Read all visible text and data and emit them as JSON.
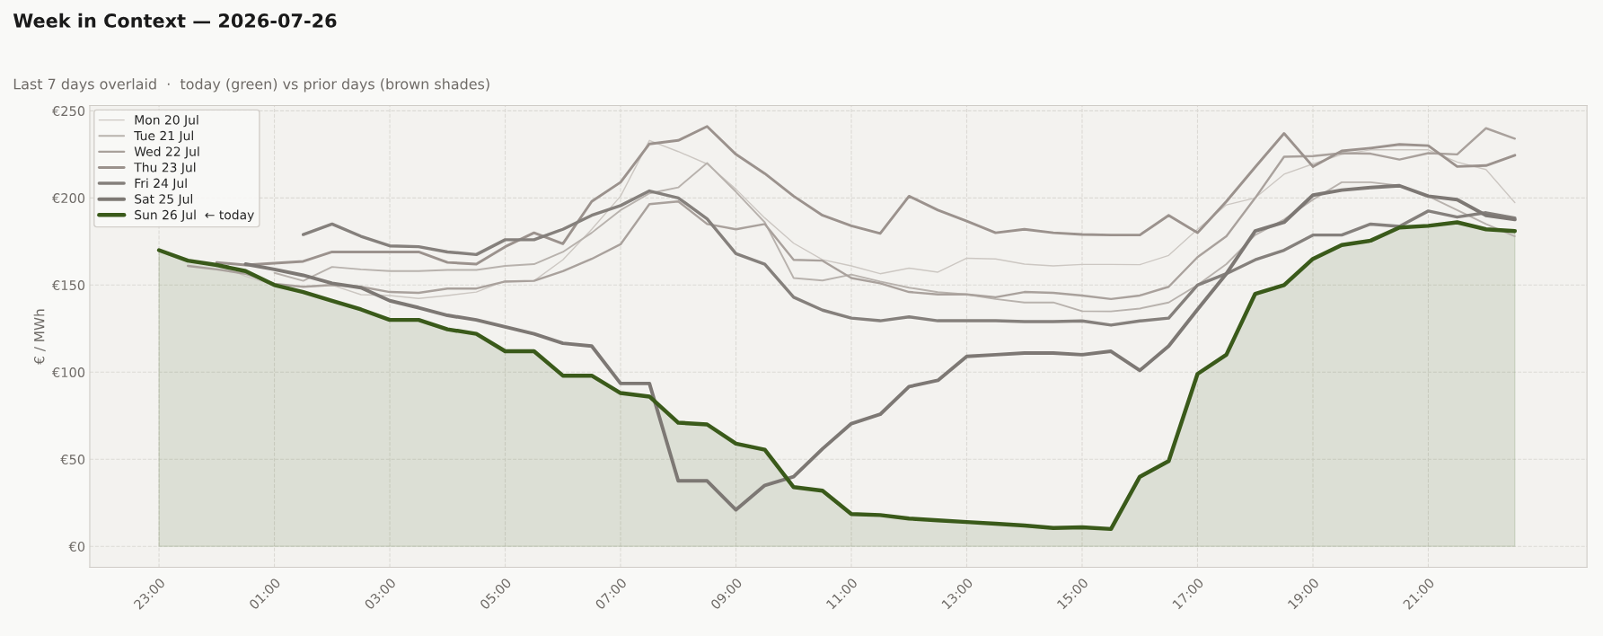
{
  "chart_data": {
    "type": "line",
    "title": "Week in Context — 2026-07-26",
    "subtitle": "Last 7 days overlaid  ·  today (green) vs prior days (brown shades)",
    "ylabel": "€ / MWh",
    "x": [
      "2026-07-25T23:00",
      "2026-07-25T23:30",
      "2026-07-26T00:00",
      "2026-07-26T00:30",
      "2026-07-26T01:00",
      "2026-07-26T01:30",
      "2026-07-26T02:00",
      "2026-07-26T02:30",
      "2026-07-26T03:00",
      "2026-07-26T03:30",
      "2026-07-26T04:00",
      "2026-07-26T04:30",
      "2026-07-26T05:00",
      "2026-07-26T05:30",
      "2026-07-26T06:00",
      "2026-07-26T06:30",
      "2026-07-26T07:00",
      "2026-07-26T07:30",
      "2026-07-26T08:00",
      "2026-07-26T08:30",
      "2026-07-26T09:00",
      "2026-07-26T09:30",
      "2026-07-26T10:00",
      "2026-07-26T10:30",
      "2026-07-26T11:00",
      "2026-07-26T11:30",
      "2026-07-26T12:00",
      "2026-07-26T12:30",
      "2026-07-26T13:00",
      "2026-07-26T13:30",
      "2026-07-26T14:00",
      "2026-07-26T14:30",
      "2026-07-26T15:00",
      "2026-07-26T15:30",
      "2026-07-26T16:00",
      "2026-07-26T16:30",
      "2026-07-26T17:00",
      "2026-07-26T17:30",
      "2026-07-26T18:00",
      "2026-07-26T18:30",
      "2026-07-26T19:00",
      "2026-07-26T19:30",
      "2026-07-26T20:00",
      "2026-07-26T20:30",
      "2026-07-26T21:00",
      "2026-07-26T21:30",
      "2026-07-26T22:00",
      "2026-07-26T22:30"
    ],
    "xlim": [
      "2026-07-25T21:48",
      "2026-07-26T23:45"
    ],
    "xticks": [
      {
        "value": "2026-07-25T23:00",
        "label": "23:00"
      },
      {
        "value": "2026-07-26T01:00",
        "label": "01:00"
      },
      {
        "value": "2026-07-26T03:00",
        "label": "03:00"
      },
      {
        "value": "2026-07-26T05:00",
        "label": "05:00"
      },
      {
        "value": "2026-07-26T07:00",
        "label": "07:00"
      },
      {
        "value": "2026-07-26T09:00",
        "label": "09:00"
      },
      {
        "value": "2026-07-26T11:00",
        "label": "11:00"
      },
      {
        "value": "2026-07-26T13:00",
        "label": "13:00"
      },
      {
        "value": "2026-07-26T15:00",
        "label": "15:00"
      },
      {
        "value": "2026-07-26T17:00",
        "label": "17:00"
      },
      {
        "value": "2026-07-26T19:00",
        "label": "19:00"
      },
      {
        "value": "2026-07-26T21:00",
        "label": "21:00"
      }
    ],
    "ylim": [
      -12,
      253
    ],
    "yticks": [
      {
        "value": 0,
        "label": "€0"
      },
      {
        "value": 50,
        "label": "€50"
      },
      {
        "value": 100,
        "label": "€100"
      },
      {
        "value": 150,
        "label": "€150"
      },
      {
        "value": 200,
        "label": "€200"
      },
      {
        "value": 250,
        "label": "€250"
      }
    ],
    "grid": true,
    "legend": "top left",
    "line_style": "solid",
    "series": [
      {
        "name": "Mon 20 Jul",
        "color": "#ccc7c2",
        "values": [
          null,
          null,
          162,
          155,
          150,
          149,
          150,
          144.5,
          144,
          142.3,
          144,
          146,
          152.4,
          152.4,
          164.5,
          182,
          201,
          233,
          226.6,
          219.5,
          205,
          188.5,
          174,
          164.5,
          161,
          156.5,
          159.7,
          157.4,
          165.4,
          165,
          162,
          161,
          161.8,
          161.8,
          161.7,
          167,
          182,
          196,
          200,
          213.6,
          219.5,
          225,
          227.6,
          227.6,
          227.6,
          220.6,
          216.3,
          197.3
        ]
      },
      {
        "name": "Tue 21 Jul",
        "color": "#b8b2ad",
        "values": [
          null,
          null,
          null,
          null,
          157,
          152.4,
          160.4,
          159,
          158,
          158,
          158.7,
          158.7,
          161,
          162,
          169,
          180,
          193,
          202.6,
          206,
          220,
          203.5,
          186,
          154,
          152.6,
          156,
          152,
          148.5,
          145.9,
          144.6,
          142,
          140,
          140,
          135,
          134.9,
          136.5,
          140,
          150,
          162,
          178.7,
          187.6,
          199,
          209,
          209,
          207,
          201,
          193,
          185,
          178
        ]
      },
      {
        "name": "Wed 22 Jul",
        "color": "#a9a19c",
        "values": [
          null,
          161,
          159,
          156.5,
          150.7,
          149,
          150,
          149,
          146,
          145.5,
          148,
          148,
          152,
          152.4,
          158,
          165,
          173.4,
          196.4,
          198,
          185,
          182,
          185,
          164.5,
          164,
          154,
          151,
          146,
          144.6,
          144.6,
          143,
          146,
          145.5,
          144,
          142,
          144,
          149,
          166,
          178,
          200,
          223.6,
          224,
          225.7,
          225.4,
          222,
          225.7,
          225,
          240,
          234
        ]
      },
      {
        "name": "Thu 23 Jul",
        "color": "#9b928d",
        "values": [
          null,
          null,
          163,
          161.5,
          null,
          163.6,
          169,
          169,
          169,
          169,
          163,
          162,
          172,
          180,
          173.7,
          198,
          209,
          231,
          233,
          241,
          225,
          214,
          201,
          190,
          184,
          179.6,
          201,
          193,
          186.7,
          180,
          182,
          180,
          179,
          178.7,
          178.7,
          190,
          180,
          198,
          217.7,
          237,
          218,
          227,
          228.6,
          230.7,
          230,
          218,
          218.6,
          224.5
        ]
      },
      {
        "name": "Fri 24 Jul",
        "color": "#85807c",
        "values": [
          null,
          null,
          null,
          null,
          null,
          179,
          185,
          178,
          172.5,
          172,
          169,
          167.5,
          176,
          176,
          182,
          190,
          195.6,
          204,
          200,
          188,
          168,
          162,
          143,
          135.6,
          131,
          129.5,
          131.7,
          129.5,
          129.5,
          129.5,
          129,
          129,
          129.4,
          127,
          129.4,
          131,
          150,
          156.5,
          164.5,
          170,
          178.7,
          178.7,
          185,
          183.7,
          192.5,
          189,
          191.5,
          188.5
        ]
      },
      {
        "name": "Sat 25 Jul",
        "color": "#7d7874",
        "values": [
          null,
          null,
          null,
          162,
          159,
          155.6,
          151,
          148.5,
          141,
          137,
          132.6,
          130,
          126,
          122,
          116.6,
          115,
          93.5,
          93.5,
          37.6,
          37.6,
          21,
          35,
          40,
          56,
          70.5,
          75.8,
          91.7,
          95.3,
          109,
          110,
          111,
          111,
          110,
          112,
          101,
          115,
          136,
          156.5,
          181,
          186,
          201.6,
          204.5,
          206,
          207,
          201,
          199,
          190,
          187.6
        ]
      },
      {
        "name": "Sun 26 Jul  ← today",
        "color": "#3a5a1a",
        "type": "area",
        "values": [
          170,
          164,
          161.5,
          158,
          150,
          146,
          141,
          136,
          130,
          130,
          124.6,
          122,
          112,
          112,
          98,
          98,
          88,
          86,
          71,
          70,
          59,
          55.5,
          34,
          32,
          18.6,
          18,
          16,
          15,
          14,
          13,
          12,
          10.6,
          11,
          10,
          40,
          49,
          99,
          110,
          145,
          150,
          165,
          173,
          175.5,
          183,
          184,
          186,
          182,
          181
        ]
      }
    ]
  }
}
